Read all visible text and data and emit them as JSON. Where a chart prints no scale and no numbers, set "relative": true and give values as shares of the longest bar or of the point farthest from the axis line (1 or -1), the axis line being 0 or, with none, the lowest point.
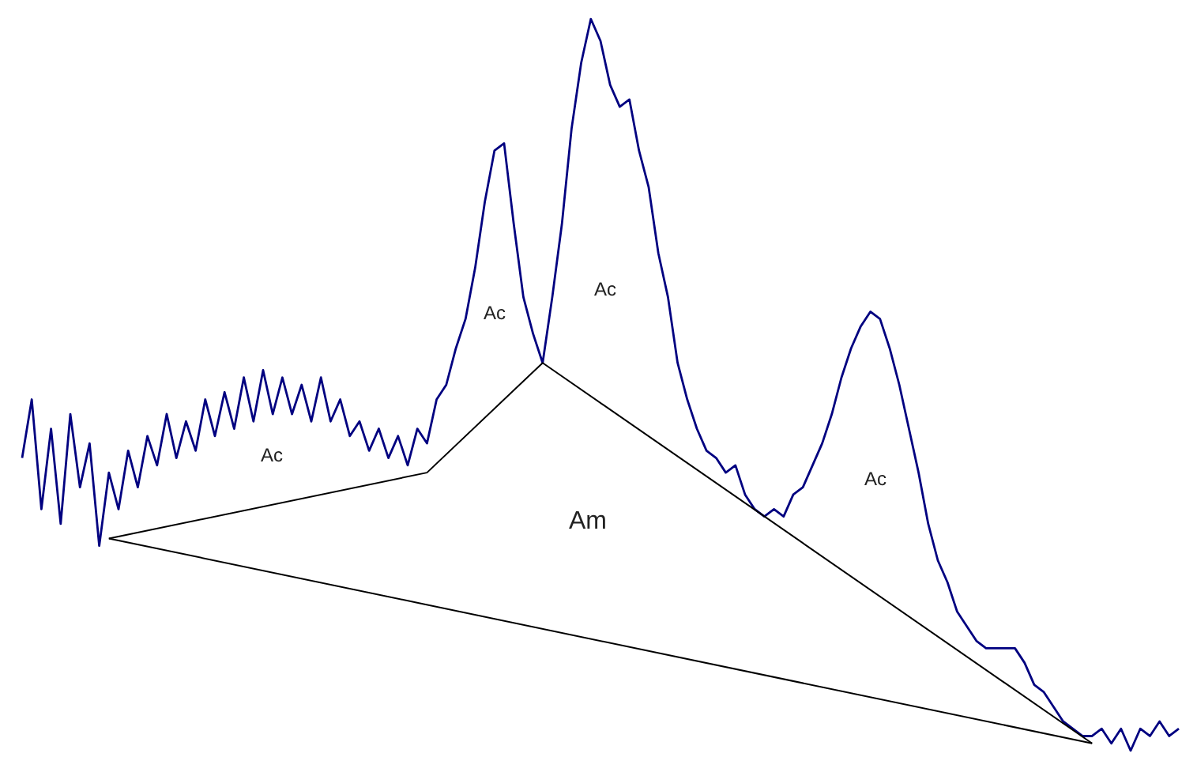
{
  "chart_data": {
    "type": "line",
    "relative": true,
    "grid": false,
    "tick_labels": false,
    "categories": [
      null,
      null,
      null,
      null,
      null,
      null,
      null,
      null,
      null,
      null,
      null,
      null,
      null,
      null,
      null,
      null,
      null,
      null,
      null,
      null,
      null,
      null,
      null,
      null,
      null,
      null,
      null,
      null,
      null,
      null,
      null,
      null,
      null,
      null,
      null,
      null,
      null,
      null,
      null,
      null,
      null,
      null,
      null,
      null,
      null,
      null,
      null,
      null,
      null,
      null,
      null,
      null,
      null,
      null,
      null,
      null,
      null,
      null,
      null,
      null,
      null,
      null,
      null,
      null,
      null,
      null,
      null,
      null,
      null,
      null,
      null,
      null,
      null,
      null,
      null,
      null,
      null,
      null,
      null,
      null,
      null,
      null,
      null,
      null,
      null,
      null,
      null,
      null,
      null,
      null,
      null,
      null,
      null,
      null,
      null,
      null,
      null,
      null,
      null,
      null,
      null,
      null,
      null,
      null,
      null,
      null,
      null,
      null,
      null,
      null,
      null,
      null,
      null,
      null,
      null,
      null,
      null,
      null,
      null,
      null,
      null
    ],
    "series": [
      {
        "color": "#000080",
        "values": [
          0.4,
          0.48,
          0.33,
          0.44,
          0.31,
          0.46,
          0.36,
          0.42,
          0.28,
          0.38,
          0.33,
          0.41,
          0.36,
          0.43,
          0.39,
          0.46,
          0.4,
          0.45,
          0.41,
          0.48,
          0.43,
          0.49,
          0.44,
          0.51,
          0.45,
          0.52,
          0.46,
          0.51,
          0.46,
          0.5,
          0.45,
          0.51,
          0.45,
          0.48,
          0.43,
          0.45,
          0.41,
          0.44,
          0.4,
          0.43,
          0.39,
          0.44,
          0.42,
          0.48,
          0.5,
          0.55,
          0.59,
          0.66,
          0.75,
          0.82,
          0.83,
          0.72,
          0.62,
          0.57,
          0.53,
          0.62,
          0.72,
          0.85,
          0.94,
          1,
          0.97,
          0.91,
          0.88,
          0.89,
          0.82,
          0.77,
          0.68,
          0.62,
          0.53,
          0.48,
          0.44,
          0.41,
          0.4,
          0.38,
          0.39,
          0.35,
          0.33,
          0.32,
          0.33,
          0.32,
          0.35,
          0.36,
          0.39,
          0.42,
          0.46,
          0.51,
          0.55,
          0.58,
          0.6,
          0.59,
          0.55,
          0.5,
          0.44,
          0.38,
          0.31,
          0.26,
          0.23,
          0.19,
          0.17,
          0.15,
          0.14,
          0.14,
          0.14,
          0.14,
          0.12,
          0.09,
          0.08,
          0.06,
          0.04,
          0.03,
          0.02,
          0.02,
          0.03,
          0.01,
          0.03,
          0,
          0.03,
          0.02,
          0.04,
          0.02,
          0.03
        ]
      },
      {
        "color": "#000000",
        "values": [
          null,
          null,
          null,
          null,
          null,
          null,
          null,
          null,
          null,
          0.29,
          null,
          null,
          null,
          null,
          null,
          null,
          null,
          null,
          null,
          null,
          null,
          null,
          null,
          null,
          null,
          null,
          null,
          null,
          null,
          null,
          null,
          null,
          null,
          null,
          null,
          null,
          null,
          null,
          null,
          null,
          null,
          null,
          0.38,
          null,
          null,
          null,
          null,
          null,
          null,
          null,
          null,
          null,
          null,
          null,
          0.53,
          null,
          null,
          null,
          null,
          null,
          null,
          null,
          null,
          null,
          null,
          null,
          null,
          null,
          null,
          null,
          null,
          null,
          null,
          null,
          null,
          null,
          null,
          null,
          null,
          null,
          null,
          null,
          null,
          null,
          null,
          null,
          null,
          null,
          null,
          null,
          null,
          null,
          null,
          null,
          null,
          null,
          null,
          null,
          null,
          null,
          null,
          null,
          null,
          null,
          null,
          null,
          null,
          null,
          null,
          null,
          null,
          0.01,
          null,
          null,
          null,
          null,
          null,
          null,
          null,
          null,
          null
        ]
      },
      {
        "color": "#000000",
        "values": [
          null,
          null,
          null,
          null,
          null,
          null,
          null,
          null,
          null,
          0.29,
          null,
          null,
          null,
          null,
          null,
          null,
          null,
          null,
          null,
          null,
          null,
          null,
          null,
          null,
          null,
          null,
          null,
          null,
          null,
          null,
          null,
          null,
          null,
          null,
          null,
          null,
          null,
          null,
          null,
          null,
          null,
          null,
          null,
          null,
          null,
          null,
          null,
          null,
          null,
          null,
          null,
          null,
          null,
          null,
          null,
          null,
          null,
          null,
          null,
          null,
          null,
          null,
          null,
          null,
          null,
          null,
          null,
          null,
          null,
          null,
          null,
          null,
          null,
          null,
          null,
          null,
          null,
          null,
          null,
          null,
          null,
          null,
          null,
          null,
          null,
          null,
          null,
          null,
          null,
          null,
          null,
          null,
          null,
          null,
          null,
          null,
          null,
          null,
          null,
          null,
          null,
          null,
          null,
          null,
          null,
          null,
          null,
          null,
          null,
          null,
          null,
          0.01,
          null,
          null,
          null,
          null,
          null,
          null,
          null,
          null,
          null
        ]
      }
    ],
    "annotations": [
      "Ac",
      "Ac",
      "Ac",
      "Ac",
      "Am"
    ]
  }
}
